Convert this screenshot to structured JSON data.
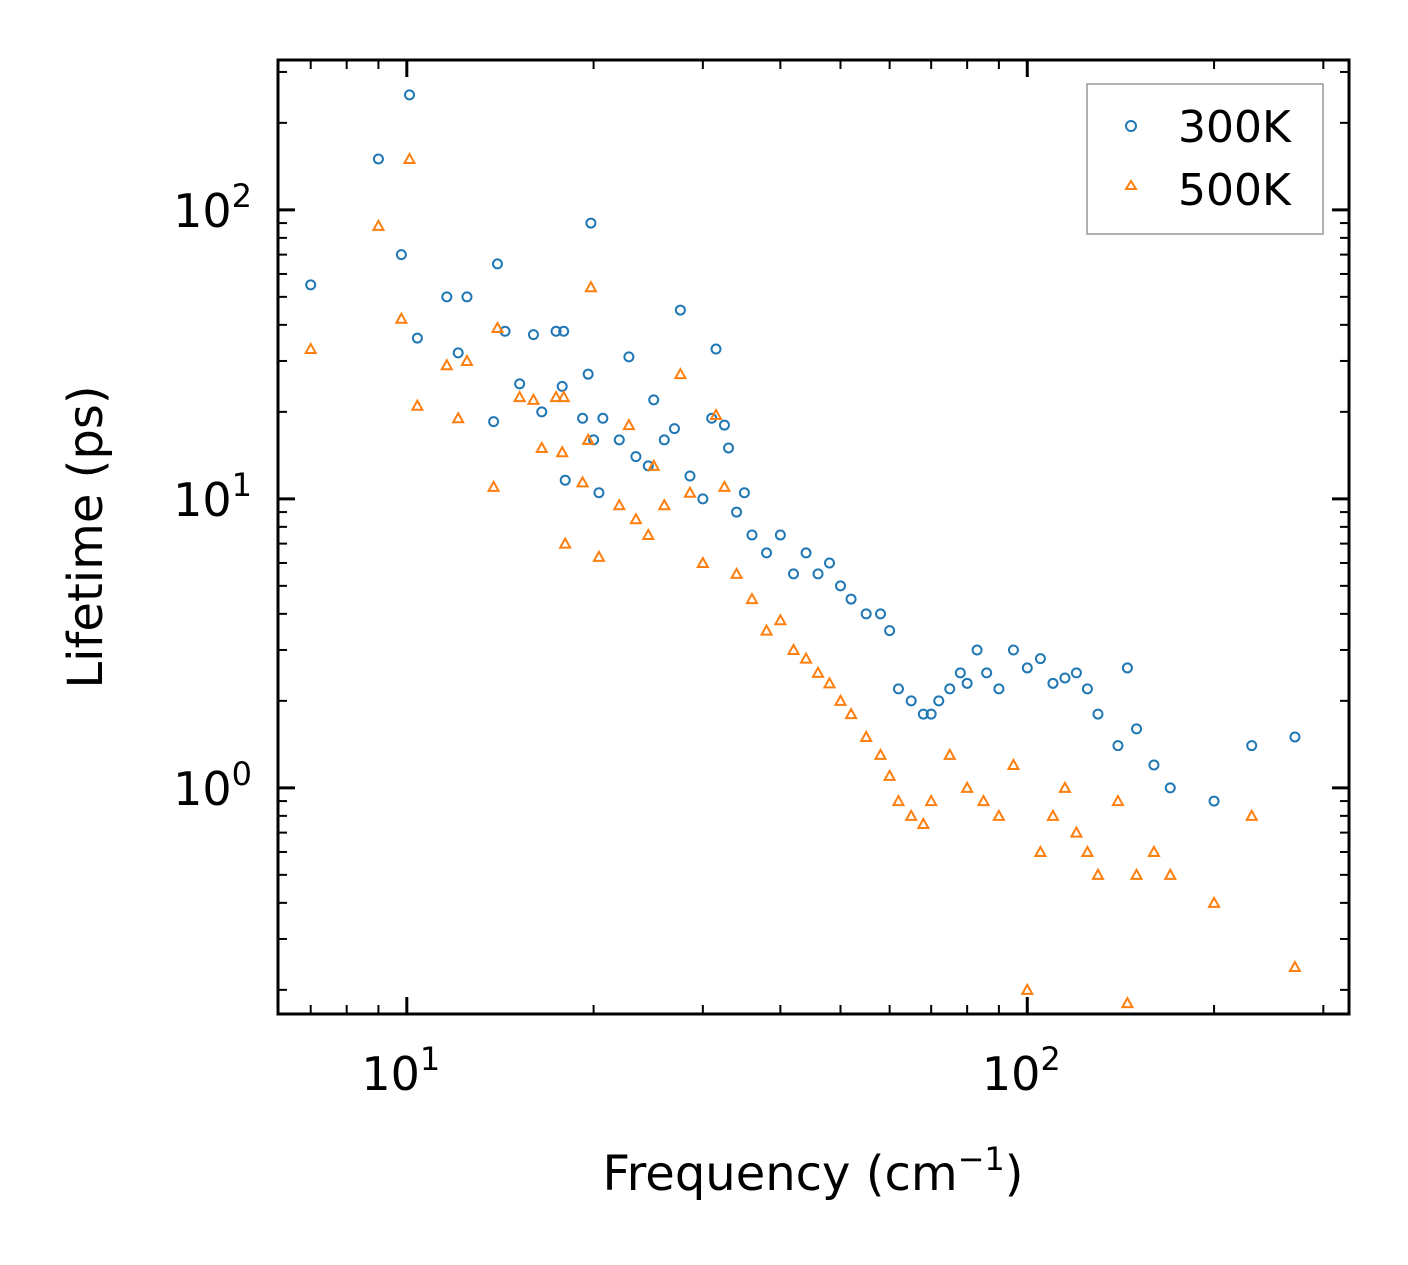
{
  "chart_data": {
    "type": "scatter",
    "xscale": "log",
    "yscale": "log",
    "xlabel": "Frequency (cm",
    "xlabel_superscript": "−1",
    "xlabel_suffix": ")",
    "ylabel": "Lifetime (ps)",
    "xlim": [
      6.2,
      330
    ],
    "ylim": [
      0.165,
      330
    ],
    "x_ticks": [
      {
        "value": 10,
        "base": "10",
        "exp": "1"
      },
      {
        "value": 100,
        "base": "10",
        "exp": "2"
      }
    ],
    "y_ticks": [
      {
        "value": 1,
        "base": "10",
        "exp": "0"
      },
      {
        "value": 10,
        "base": "10",
        "exp": "1"
      },
      {
        "value": 100,
        "base": "10",
        "exp": "2"
      }
    ],
    "legend_position": "top-right",
    "series": [
      {
        "name": "300K",
        "marker": "circle",
        "color": "#1f77b4",
        "points": [
          [
            7.0,
            55
          ],
          [
            9.0,
            150
          ],
          [
            9.8,
            70
          ],
          [
            10.1,
            250
          ],
          [
            10.4,
            36
          ],
          [
            11.6,
            50
          ],
          [
            12.1,
            32
          ],
          [
            12.5,
            50
          ],
          [
            13.8,
            18.5
          ],
          [
            14.0,
            65
          ],
          [
            14.4,
            38
          ],
          [
            15.2,
            25
          ],
          [
            16.0,
            37
          ],
          [
            16.5,
            20
          ],
          [
            17.4,
            38
          ],
          [
            17.8,
            24.5
          ],
          [
            17.9,
            38
          ],
          [
            18.0,
            11.6
          ],
          [
            19.2,
            19
          ],
          [
            19.6,
            27
          ],
          [
            19.8,
            90
          ],
          [
            20.0,
            16
          ],
          [
            20.4,
            10.5
          ],
          [
            20.7,
            19
          ],
          [
            22.0,
            16
          ],
          [
            22.8,
            31
          ],
          [
            23.4,
            14
          ],
          [
            24.5,
            13
          ],
          [
            25.0,
            22
          ],
          [
            26.0,
            16
          ],
          [
            27.0,
            17.5
          ],
          [
            27.6,
            45
          ],
          [
            28.6,
            12
          ],
          [
            30.0,
            10
          ],
          [
            31.0,
            19
          ],
          [
            31.5,
            33
          ],
          [
            32.5,
            18
          ],
          [
            33.0,
            15
          ],
          [
            34.0,
            9
          ],
          [
            35.0,
            10.5
          ],
          [
            36.0,
            7.5
          ],
          [
            38.0,
            6.5
          ],
          [
            40.0,
            7.5
          ],
          [
            42.0,
            5.5
          ],
          [
            44.0,
            6.5
          ],
          [
            46.0,
            5.5
          ],
          [
            48.0,
            6
          ],
          [
            50.0,
            5
          ],
          [
            52.0,
            4.5
          ],
          [
            55.0,
            4
          ],
          [
            58.0,
            4
          ],
          [
            60.0,
            3.5
          ],
          [
            62.0,
            2.2
          ],
          [
            65.0,
            2.0
          ],
          [
            68.0,
            1.8
          ],
          [
            70.0,
            1.8
          ],
          [
            72.0,
            2.0
          ],
          [
            75.0,
            2.2
          ],
          [
            78.0,
            2.5
          ],
          [
            80.0,
            2.3
          ],
          [
            83.0,
            3.0
          ],
          [
            86.0,
            2.5
          ],
          [
            90.0,
            2.2
          ],
          [
            95.0,
            3.0
          ],
          [
            100.0,
            2.6
          ],
          [
            105.0,
            2.8
          ],
          [
            110.0,
            2.3
          ],
          [
            115.0,
            2.4
          ],
          [
            120.0,
            2.5
          ],
          [
            125.0,
            2.2
          ],
          [
            130.0,
            1.8
          ],
          [
            140.0,
            1.4
          ],
          [
            145.0,
            2.6
          ],
          [
            150.0,
            1.6
          ],
          [
            160.0,
            1.2
          ],
          [
            170.0,
            1.0
          ],
          [
            200.0,
            0.9
          ],
          [
            230.0,
            1.4
          ],
          [
            270.0,
            1.5
          ]
        ]
      },
      {
        "name": "500K",
        "marker": "triangle",
        "color": "#ff7f0e",
        "points": [
          [
            7.0,
            33
          ],
          [
            9.0,
            88
          ],
          [
            9.8,
            42
          ],
          [
            10.1,
            150
          ],
          [
            10.4,
            21
          ],
          [
            11.6,
            29
          ],
          [
            12.1,
            19
          ],
          [
            12.5,
            30
          ],
          [
            13.8,
            11
          ],
          [
            14.0,
            39
          ],
          [
            15.2,
            22.5
          ],
          [
            16.0,
            22
          ],
          [
            16.5,
            15
          ],
          [
            17.4,
            22.5
          ],
          [
            17.8,
            14.5
          ],
          [
            17.9,
            22.5
          ],
          [
            18.0,
            7
          ],
          [
            19.2,
            11.4
          ],
          [
            19.6,
            16
          ],
          [
            19.8,
            54
          ],
          [
            20.4,
            6.3
          ],
          [
            22.0,
            9.5
          ],
          [
            22.8,
            18
          ],
          [
            23.4,
            8.5
          ],
          [
            24.5,
            7.5
          ],
          [
            25.0,
            13
          ],
          [
            26.0,
            9.5
          ],
          [
            27.6,
            27
          ],
          [
            28.6,
            10.5
          ],
          [
            30.0,
            6
          ],
          [
            31.5,
            19.5
          ],
          [
            32.5,
            11
          ],
          [
            34.0,
            5.5
          ],
          [
            36.0,
            4.5
          ],
          [
            38.0,
            3.5
          ],
          [
            40.0,
            3.8
          ],
          [
            42.0,
            3.0
          ],
          [
            44.0,
            2.8
          ],
          [
            46.0,
            2.5
          ],
          [
            48.0,
            2.3
          ],
          [
            50.0,
            2.0
          ],
          [
            52.0,
            1.8
          ],
          [
            55.0,
            1.5
          ],
          [
            58.0,
            1.3
          ],
          [
            60.0,
            1.1
          ],
          [
            62.0,
            0.9
          ],
          [
            65.0,
            0.8
          ],
          [
            68.0,
            0.75
          ],
          [
            70.0,
            0.9
          ],
          [
            75.0,
            1.3
          ],
          [
            80.0,
            1.0
          ],
          [
            85.0,
            0.9
          ],
          [
            90.0,
            0.8
          ],
          [
            95.0,
            1.2
          ],
          [
            100.0,
            0.2
          ],
          [
            105.0,
            0.6
          ],
          [
            110.0,
            0.8
          ],
          [
            115.0,
            1.0
          ],
          [
            120.0,
            0.7
          ],
          [
            125.0,
            0.6
          ],
          [
            130.0,
            0.5
          ],
          [
            140.0,
            0.9
          ],
          [
            145.0,
            0.18
          ],
          [
            150.0,
            0.5
          ],
          [
            160.0,
            0.6
          ],
          [
            170.0,
            0.5
          ],
          [
            200.0,
            0.4
          ],
          [
            230.0,
            0.8
          ],
          [
            270.0,
            0.24
          ]
        ]
      }
    ]
  }
}
